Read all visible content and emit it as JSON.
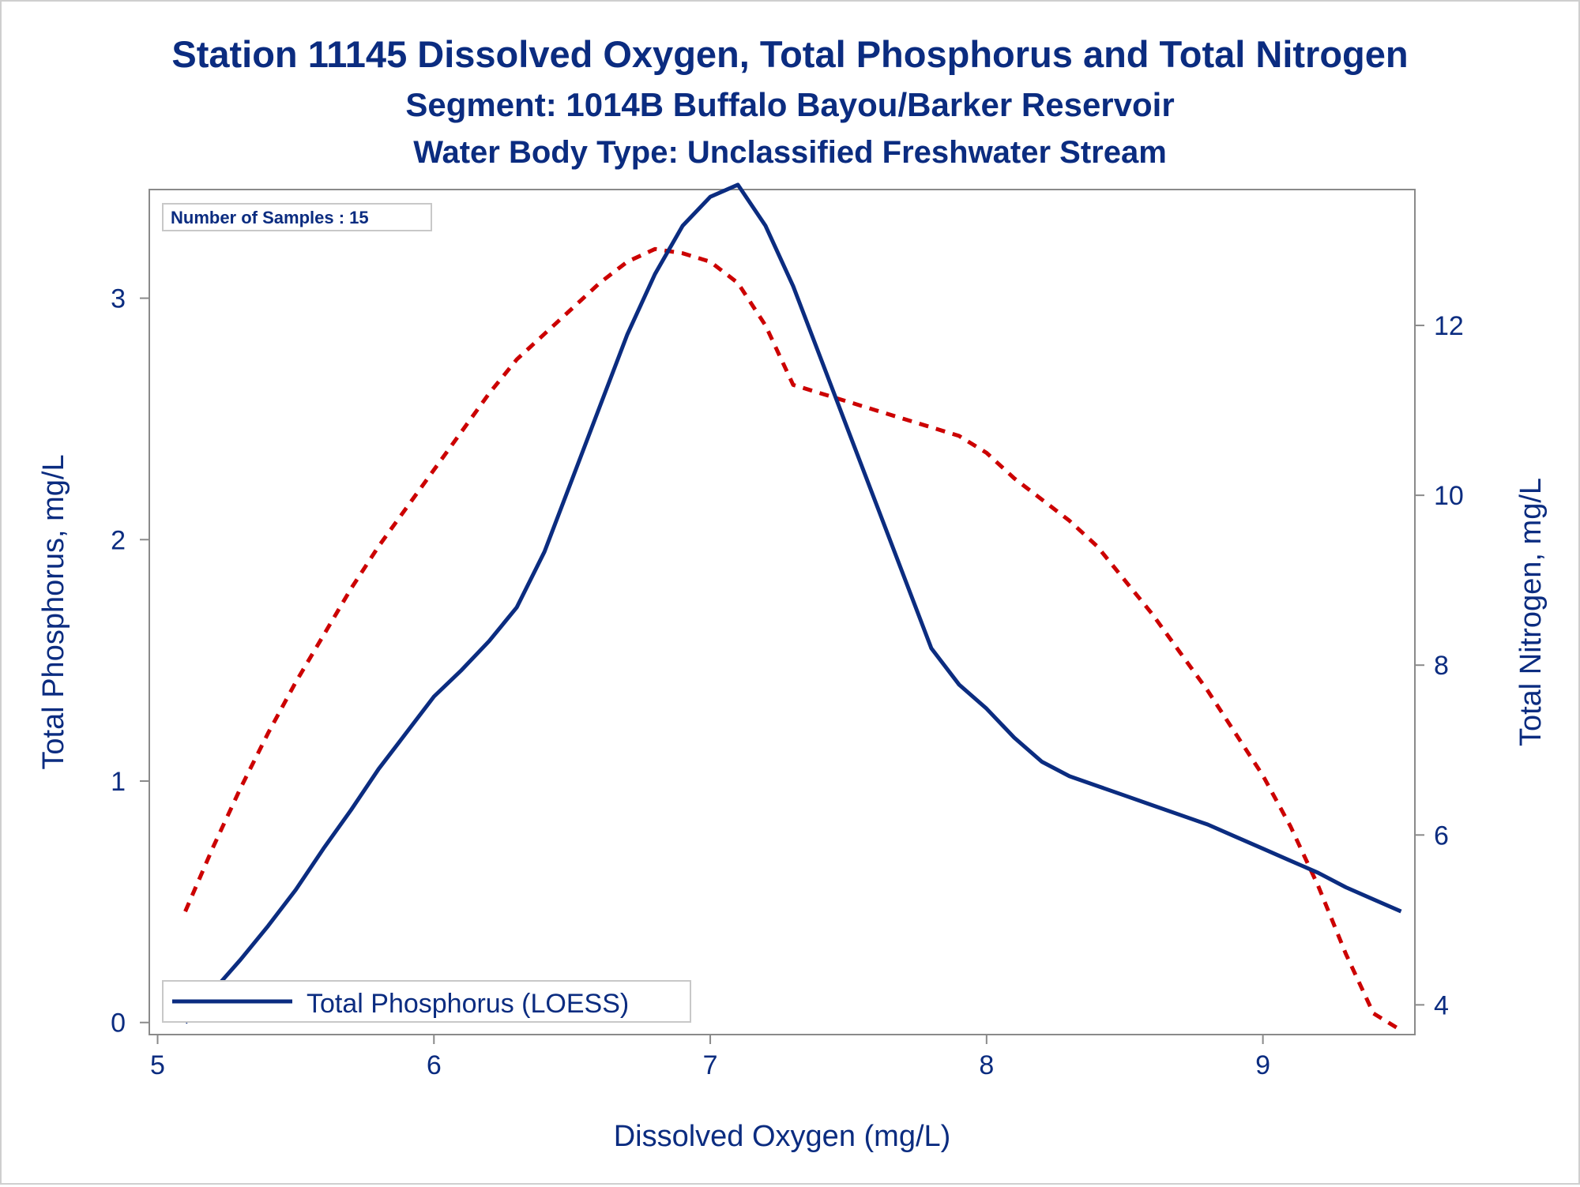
{
  "chart_data": {
    "type": "line",
    "title": "Station 11145  Dissolved Oxygen, Total Phosphorus and Total Nitrogen",
    "subtitle": "Segment: 1014B  Buffalo Bayou/Barker Reservoir",
    "subtitle2": "Water Body Type: Unclassified Freshwater Stream",
    "xlabel": "Dissolved Oxygen (mg/L)",
    "ylabel_left": "Total Phosphorus, mg/L",
    "ylabel_right": "Total Nitrogen, mg/L",
    "xlim": [
      4.97,
      9.55
    ],
    "ylim_left": [
      -0.05,
      3.45
    ],
    "ylim_right": [
      3.65,
      13.6
    ],
    "x_ticks": [
      5,
      6,
      7,
      8,
      9
    ],
    "y_left_ticks": [
      0,
      1,
      2,
      3
    ],
    "y_right_ticks": [
      4,
      6,
      8,
      10,
      12
    ],
    "annotation": "Number of Samples : 15",
    "legend": {
      "placement": "bottom-left",
      "label": "Total Phosphorus (LOESS)"
    },
    "grid": false,
    "colors": {
      "title": "#0b2c80",
      "phosphorus": "#0b2c80",
      "nitrogen": "#cc0000",
      "axis": "#8a8a8a"
    },
    "series": [
      {
        "name": "Total Phosphorus (LOESS)",
        "axis": "left",
        "style": "solid",
        "x": [
          5.1,
          5.2,
          5.3,
          5.4,
          5.5,
          5.6,
          5.7,
          5.8,
          5.9,
          6.0,
          6.1,
          6.2,
          6.3,
          6.4,
          6.5,
          6.6,
          6.7,
          6.8,
          6.9,
          7.0,
          7.1,
          7.2,
          7.3,
          7.4,
          7.5,
          7.6,
          7.7,
          7.8,
          7.9,
          8.0,
          8.1,
          8.2,
          8.3,
          8.4,
          8.5,
          8.6,
          8.7,
          8.8,
          8.9,
          9.0,
          9.1,
          9.2,
          9.3,
          9.4,
          9.5
        ],
        "y": [
          0.0,
          0.13,
          0.26,
          0.4,
          0.55,
          0.72,
          0.88,
          1.05,
          1.2,
          1.35,
          1.46,
          1.58,
          1.72,
          1.95,
          2.25,
          2.55,
          2.85,
          3.1,
          3.3,
          3.42,
          3.47,
          3.3,
          3.05,
          2.75,
          2.45,
          2.15,
          1.85,
          1.55,
          1.4,
          1.3,
          1.18,
          1.08,
          1.02,
          0.98,
          0.94,
          0.9,
          0.86,
          0.82,
          0.77,
          0.72,
          0.67,
          0.62,
          0.56,
          0.51,
          0.46
        ]
      },
      {
        "name": "",
        "axis": "right",
        "style": "dashed",
        "x": [
          5.1,
          5.2,
          5.3,
          5.4,
          5.5,
          5.6,
          5.7,
          5.8,
          5.9,
          6.0,
          6.1,
          6.2,
          6.3,
          6.4,
          6.5,
          6.6,
          6.7,
          6.8,
          6.9,
          7.0,
          7.1,
          7.2,
          7.3,
          7.4,
          7.5,
          7.6,
          7.7,
          7.8,
          7.9,
          8.0,
          8.1,
          8.2,
          8.3,
          8.4,
          8.5,
          8.6,
          8.7,
          8.8,
          8.9,
          9.0,
          9.1,
          9.2,
          9.3,
          9.4,
          9.5
        ],
        "y": [
          5.1,
          5.85,
          6.55,
          7.2,
          7.8,
          8.35,
          8.9,
          9.4,
          9.85,
          10.3,
          10.75,
          11.2,
          11.6,
          11.9,
          12.2,
          12.5,
          12.75,
          12.9,
          12.85,
          12.75,
          12.5,
          12.0,
          11.3,
          11.2,
          11.1,
          11.0,
          10.9,
          10.8,
          10.7,
          10.5,
          10.2,
          9.95,
          9.7,
          9.4,
          9.0,
          8.6,
          8.15,
          7.7,
          7.2,
          6.7,
          6.1,
          5.4,
          4.6,
          3.9,
          3.7
        ]
      }
    ]
  }
}
